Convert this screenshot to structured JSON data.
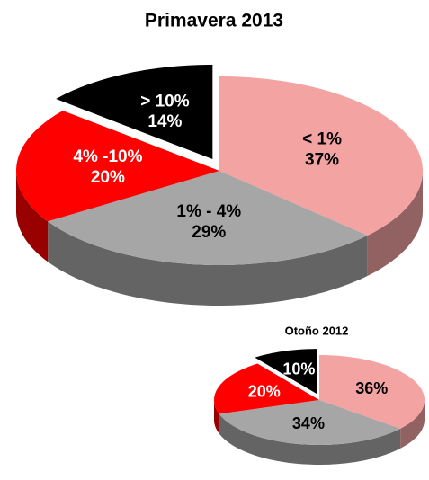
{
  "chart_data": [
    {
      "type": "pie3d",
      "title": "Primavera 2013",
      "categories": [
        "< 1%",
        "1% - 4%",
        "4% -10%",
        "> 10%"
      ],
      "values": [
        37,
        29,
        20,
        14
      ],
      "value_labels": [
        "37%",
        "29%",
        "20%",
        "14%"
      ],
      "colors": [
        "#f4a3a3",
        "#a6a6a6",
        "#ff0000",
        "#000000"
      ],
      "exploded": [
        false,
        false,
        false,
        true
      ]
    },
    {
      "type": "pie3d",
      "title": "Otoño 2012",
      "values": [
        36,
        34,
        20,
        10
      ],
      "value_labels": [
        "36%",
        "34%",
        "20%",
        "10%"
      ],
      "colors": [
        "#f4a3a3",
        "#a6a6a6",
        "#ff0000",
        "#000000"
      ],
      "exploded": [
        false,
        false,
        false,
        true
      ]
    }
  ]
}
